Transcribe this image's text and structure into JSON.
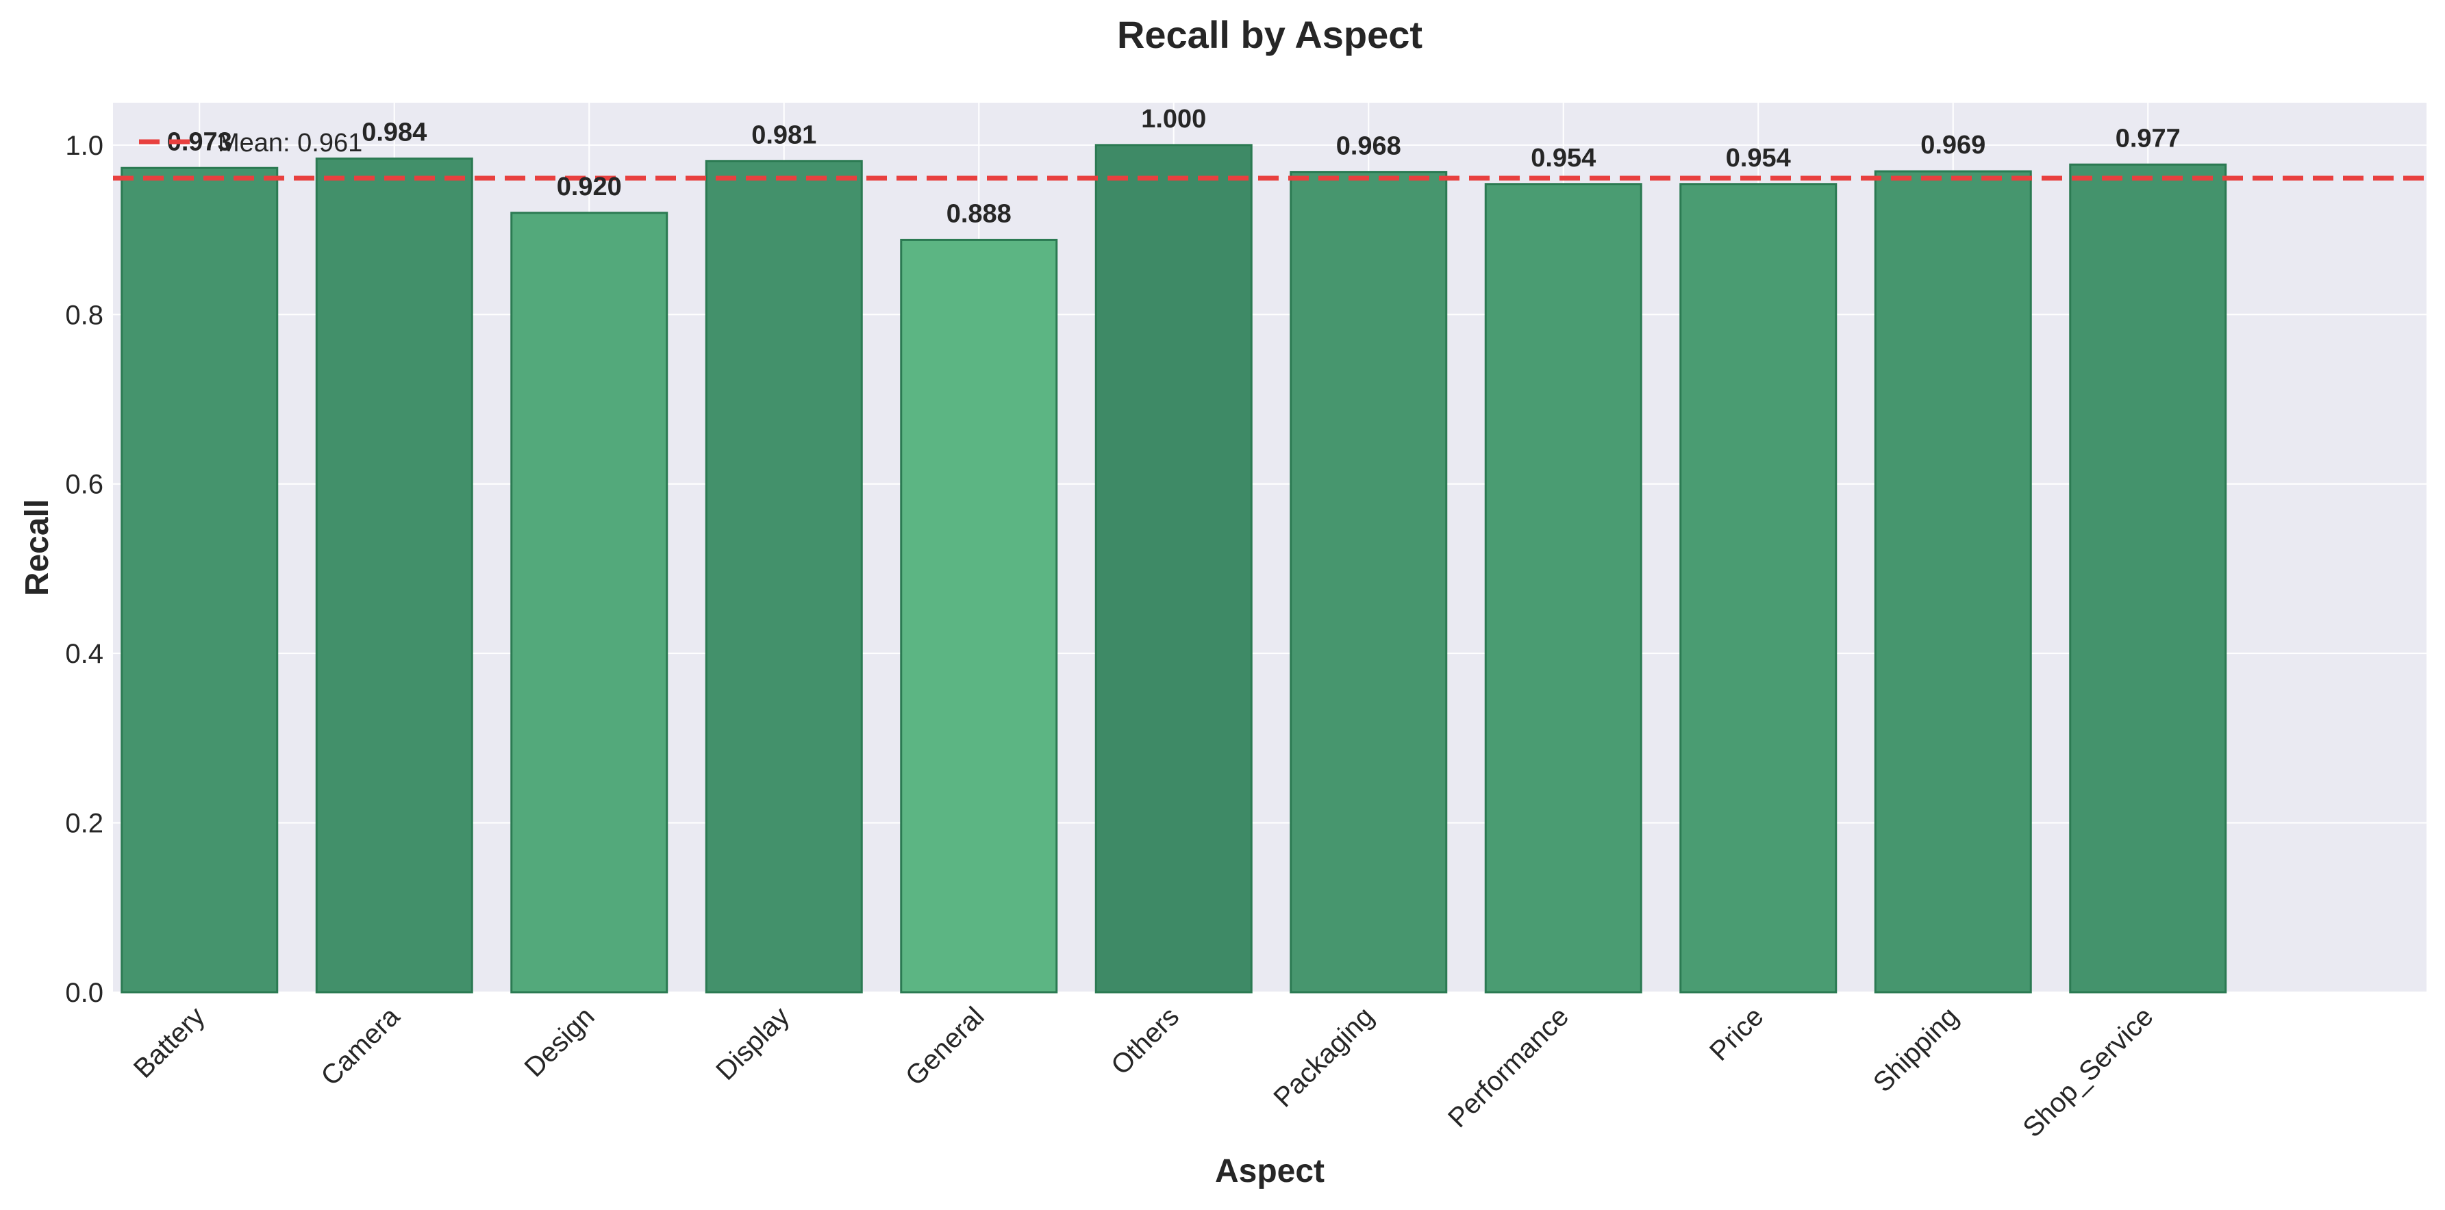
{
  "chart_data": {
    "type": "bar",
    "title": "Recall by Aspect",
    "xlabel": "Aspect",
    "ylabel": "Recall",
    "categories": [
      "Battery",
      "Camera",
      "Design",
      "Display",
      "General",
      "Others",
      "Packaging",
      "Performance",
      "Price",
      "Shipping",
      "Shop_Service"
    ],
    "values": [
      0.973,
      0.984,
      0.92,
      0.981,
      0.888,
      1.0,
      0.968,
      0.954,
      0.954,
      0.969,
      0.977
    ],
    "value_labels": [
      "0.973",
      "0.984",
      "0.920",
      "0.981",
      "0.888",
      "1.000",
      "0.968",
      "0.954",
      "0.954",
      "0.969",
      "0.977"
    ],
    "ylim": [
      0,
      1.05
    ],
    "yticks": [
      0.0,
      0.2,
      0.4,
      0.6,
      0.8,
      1.0
    ],
    "ytick_labels": [
      "0.0",
      "0.2",
      "0.4",
      "0.6",
      "0.8",
      "1.0"
    ],
    "x_tick_rotation_deg": 45,
    "grid": true,
    "reference_line": {
      "value": 0.961,
      "label": "Mean: 0.961",
      "style": "dashed",
      "color": "#e8403f"
    },
    "legend": {
      "placement": "top-left",
      "entries": [
        "Mean: 0.961"
      ]
    },
    "colors": {
      "plot_background": "#eaeaf2",
      "grid": "#ffffff",
      "bar_fill_dark": "#3e8a66",
      "bar_fill_light": "#5cb583",
      "bar_edge": "#2b7a52"
    }
  }
}
